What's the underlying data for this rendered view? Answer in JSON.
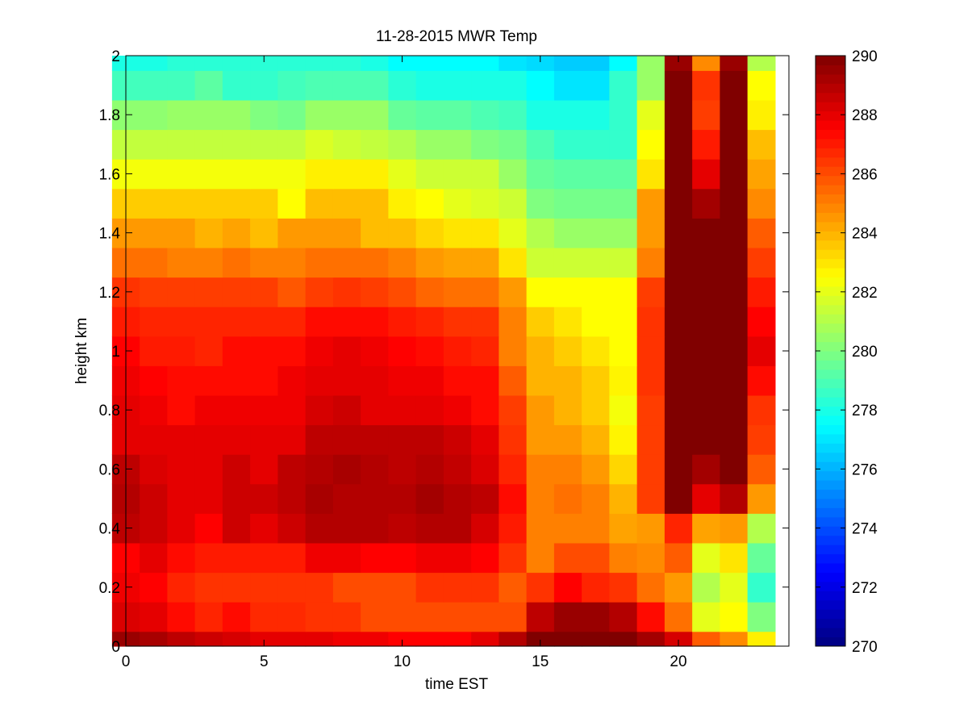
{
  "chart_data": {
    "type": "heatmap",
    "title": "11-28-2015 MWR Temp",
    "xlabel": "time EST",
    "ylabel": "height km",
    "xlim": [
      0,
      24
    ],
    "ylim": [
      0,
      2
    ],
    "x_ticks": [
      0,
      5,
      10,
      15,
      20
    ],
    "y_ticks": [
      0,
      0.2,
      0.4,
      0.6,
      0.8,
      1,
      1.2,
      1.4,
      1.6,
      1.8,
      2
    ],
    "colormap": "jet",
    "color_range": [
      270,
      290
    ],
    "colorbar_ticks": [
      270,
      272,
      274,
      276,
      278,
      280,
      282,
      284,
      286,
      288,
      290
    ],
    "x_centers": [
      0,
      1,
      2,
      3,
      4,
      5,
      6,
      7,
      8,
      9,
      10,
      11,
      12,
      13,
      14,
      15,
      16,
      17,
      18,
      19,
      20,
      21,
      22,
      23
    ],
    "y_edges": [
      0,
      0.05,
      0.15,
      0.25,
      0.35,
      0.45,
      0.55,
      0.65,
      0.75,
      0.85,
      0.95,
      1.05,
      1.15,
      1.25,
      1.35,
      1.45,
      1.55,
      1.65,
      1.75,
      1.85,
      1.95,
      2.0
    ],
    "grid": false,
    "z": [
      [
        289.5,
        289.2,
        288.8,
        288.5,
        288.3,
        288.0,
        288.0,
        288.0,
        287.8,
        287.8,
        287.5,
        287.5,
        287.5,
        288.0,
        289.0,
        290.0,
        290.0,
        290.0,
        290.0,
        289.3,
        288.3,
        285.7,
        284.8,
        282.8
      ],
      [
        288.2,
        288.0,
        287.3,
        286.8,
        287.3,
        286.7,
        286.7,
        286.5,
        286.5,
        286.0,
        286.0,
        286.0,
        286.0,
        286.0,
        286.0,
        288.8,
        289.5,
        289.5,
        289.0,
        287.3,
        285.3,
        282.0,
        282.5,
        280.0
      ],
      [
        287.8,
        287.5,
        286.8,
        286.5,
        286.5,
        286.5,
        286.5,
        286.5,
        286.0,
        286.0,
        286.0,
        286.5,
        286.5,
        286.5,
        285.7,
        286.5,
        287.5,
        286.8,
        286.5,
        285.3,
        284.5,
        281.0,
        282.0,
        278.5
      ],
      [
        287.5,
        288.0,
        287.3,
        287.0,
        287.0,
        287.0,
        287.0,
        287.8,
        287.8,
        287.5,
        287.5,
        287.8,
        287.8,
        287.5,
        286.5,
        285.0,
        286.0,
        286.0,
        285.0,
        284.8,
        285.7,
        282.0,
        283.0,
        279.5
      ],
      [
        288.8,
        288.5,
        288.0,
        287.5,
        288.5,
        288.0,
        288.5,
        289.0,
        289.0,
        289.0,
        288.8,
        289.0,
        289.0,
        288.3,
        287.0,
        285.0,
        285.0,
        285.0,
        284.3,
        284.5,
        286.8,
        284.3,
        284.5,
        281.0
      ],
      [
        289.0,
        288.5,
        288.0,
        288.0,
        288.5,
        288.5,
        288.8,
        289.2,
        289.0,
        289.0,
        289.0,
        289.3,
        289.0,
        288.8,
        287.3,
        285.0,
        285.3,
        285.0,
        284.0,
        286.3,
        290.0,
        288.0,
        289.0,
        284.5
      ],
      [
        288.8,
        288.2,
        288.0,
        288.0,
        288.5,
        288.0,
        288.8,
        289.0,
        289.2,
        289.0,
        288.8,
        289.0,
        288.7,
        288.2,
        286.8,
        285.0,
        285.0,
        284.5,
        283.3,
        286.3,
        290.0,
        289.3,
        290.0,
        285.7
      ],
      [
        288.0,
        288.0,
        288.0,
        288.0,
        288.0,
        288.0,
        288.0,
        288.8,
        288.8,
        288.8,
        288.8,
        288.8,
        288.5,
        288.0,
        286.5,
        284.5,
        284.5,
        284.0,
        282.7,
        286.3,
        290.0,
        290.0,
        290.0,
        286.3
      ],
      [
        288.0,
        287.8,
        287.3,
        287.8,
        287.8,
        287.8,
        287.8,
        288.3,
        288.5,
        288.0,
        288.0,
        288.0,
        287.8,
        287.3,
        286.3,
        284.5,
        284.0,
        283.5,
        282.3,
        286.3,
        290.0,
        290.0,
        290.0,
        286.5
      ],
      [
        287.8,
        287.5,
        287.3,
        287.3,
        287.3,
        287.3,
        287.8,
        288.0,
        288.0,
        288.0,
        287.8,
        287.8,
        287.3,
        287.3,
        285.7,
        284.0,
        284.0,
        283.5,
        282.7,
        286.5,
        290.0,
        290.0,
        290.0,
        287.3
      ],
      [
        287.5,
        287.0,
        287.0,
        286.8,
        287.3,
        287.3,
        287.3,
        287.8,
        288.0,
        287.8,
        287.5,
        287.3,
        287.0,
        286.8,
        285.0,
        284.0,
        283.5,
        283.0,
        282.5,
        286.5,
        290.0,
        290.0,
        290.0,
        288.0
      ],
      [
        287.0,
        286.8,
        286.8,
        286.8,
        286.8,
        286.8,
        286.8,
        287.3,
        287.3,
        287.3,
        287.0,
        286.8,
        286.5,
        286.5,
        285.0,
        283.5,
        283.0,
        282.5,
        282.5,
        286.5,
        290.0,
        290.0,
        290.0,
        287.5
      ],
      [
        286.5,
        286.3,
        286.3,
        286.3,
        286.3,
        286.3,
        285.8,
        286.3,
        286.5,
        286.3,
        286.0,
        285.5,
        285.3,
        285.3,
        284.5,
        282.5,
        282.5,
        282.5,
        282.5,
        286.3,
        290.0,
        290.0,
        290.0,
        287.0
      ],
      [
        285.3,
        285.3,
        285.0,
        285.0,
        285.3,
        285.0,
        285.0,
        285.3,
        285.3,
        285.3,
        285.0,
        284.5,
        284.3,
        284.3,
        283.0,
        281.5,
        281.5,
        281.5,
        281.5,
        285.0,
        290.0,
        290.0,
        290.0,
        286.3
      ],
      [
        284.5,
        284.5,
        284.5,
        284.0,
        284.3,
        283.8,
        284.5,
        284.5,
        284.5,
        283.8,
        283.8,
        283.3,
        283.0,
        283.0,
        282.0,
        281.0,
        280.5,
        280.5,
        280.5,
        284.5,
        290.0,
        290.0,
        290.0,
        285.7
      ],
      [
        283.5,
        283.5,
        283.5,
        283.5,
        283.5,
        283.5,
        282.5,
        283.8,
        283.8,
        283.8,
        282.8,
        282.5,
        282.0,
        281.8,
        281.5,
        280.0,
        279.8,
        279.8,
        279.8,
        284.5,
        290.0,
        289.3,
        290.0,
        284.8
      ],
      [
        282.3,
        282.3,
        282.3,
        282.3,
        282.3,
        282.3,
        282.3,
        282.8,
        282.8,
        282.8,
        282.0,
        281.5,
        281.5,
        281.5,
        280.5,
        279.5,
        279.3,
        279.3,
        279.3,
        283.0,
        290.0,
        288.0,
        290.0,
        284.3
      ],
      [
        281.3,
        281.3,
        281.3,
        281.3,
        281.3,
        281.3,
        281.3,
        281.8,
        281.5,
        281.3,
        281.0,
        280.5,
        280.5,
        280.0,
        279.8,
        279.0,
        278.5,
        278.5,
        278.5,
        282.5,
        290.0,
        287.0,
        290.0,
        283.8
      ],
      [
        280.3,
        280.3,
        280.5,
        280.5,
        280.5,
        280.0,
        279.8,
        280.5,
        280.5,
        280.5,
        279.5,
        279.3,
        279.3,
        279.0,
        278.8,
        278.0,
        278.0,
        278.0,
        278.5,
        282.0,
        290.0,
        286.3,
        290.0,
        282.8
      ],
      [
        278.8,
        278.8,
        278.8,
        279.3,
        278.5,
        278.5,
        278.8,
        279.0,
        279.0,
        279.0,
        278.3,
        278.0,
        278.0,
        278.0,
        278.0,
        277.5,
        277.0,
        277.0,
        278.5,
        280.5,
        290.0,
        286.5,
        290.0,
        282.5
      ],
      [
        278.0,
        278.0,
        278.3,
        278.3,
        278.3,
        278.3,
        278.3,
        278.3,
        278.3,
        278.0,
        277.5,
        277.5,
        277.5,
        277.5,
        277.0,
        276.8,
        276.5,
        276.5,
        277.5,
        280.5,
        289.5,
        284.8,
        289.5,
        281.0
      ]
    ]
  }
}
